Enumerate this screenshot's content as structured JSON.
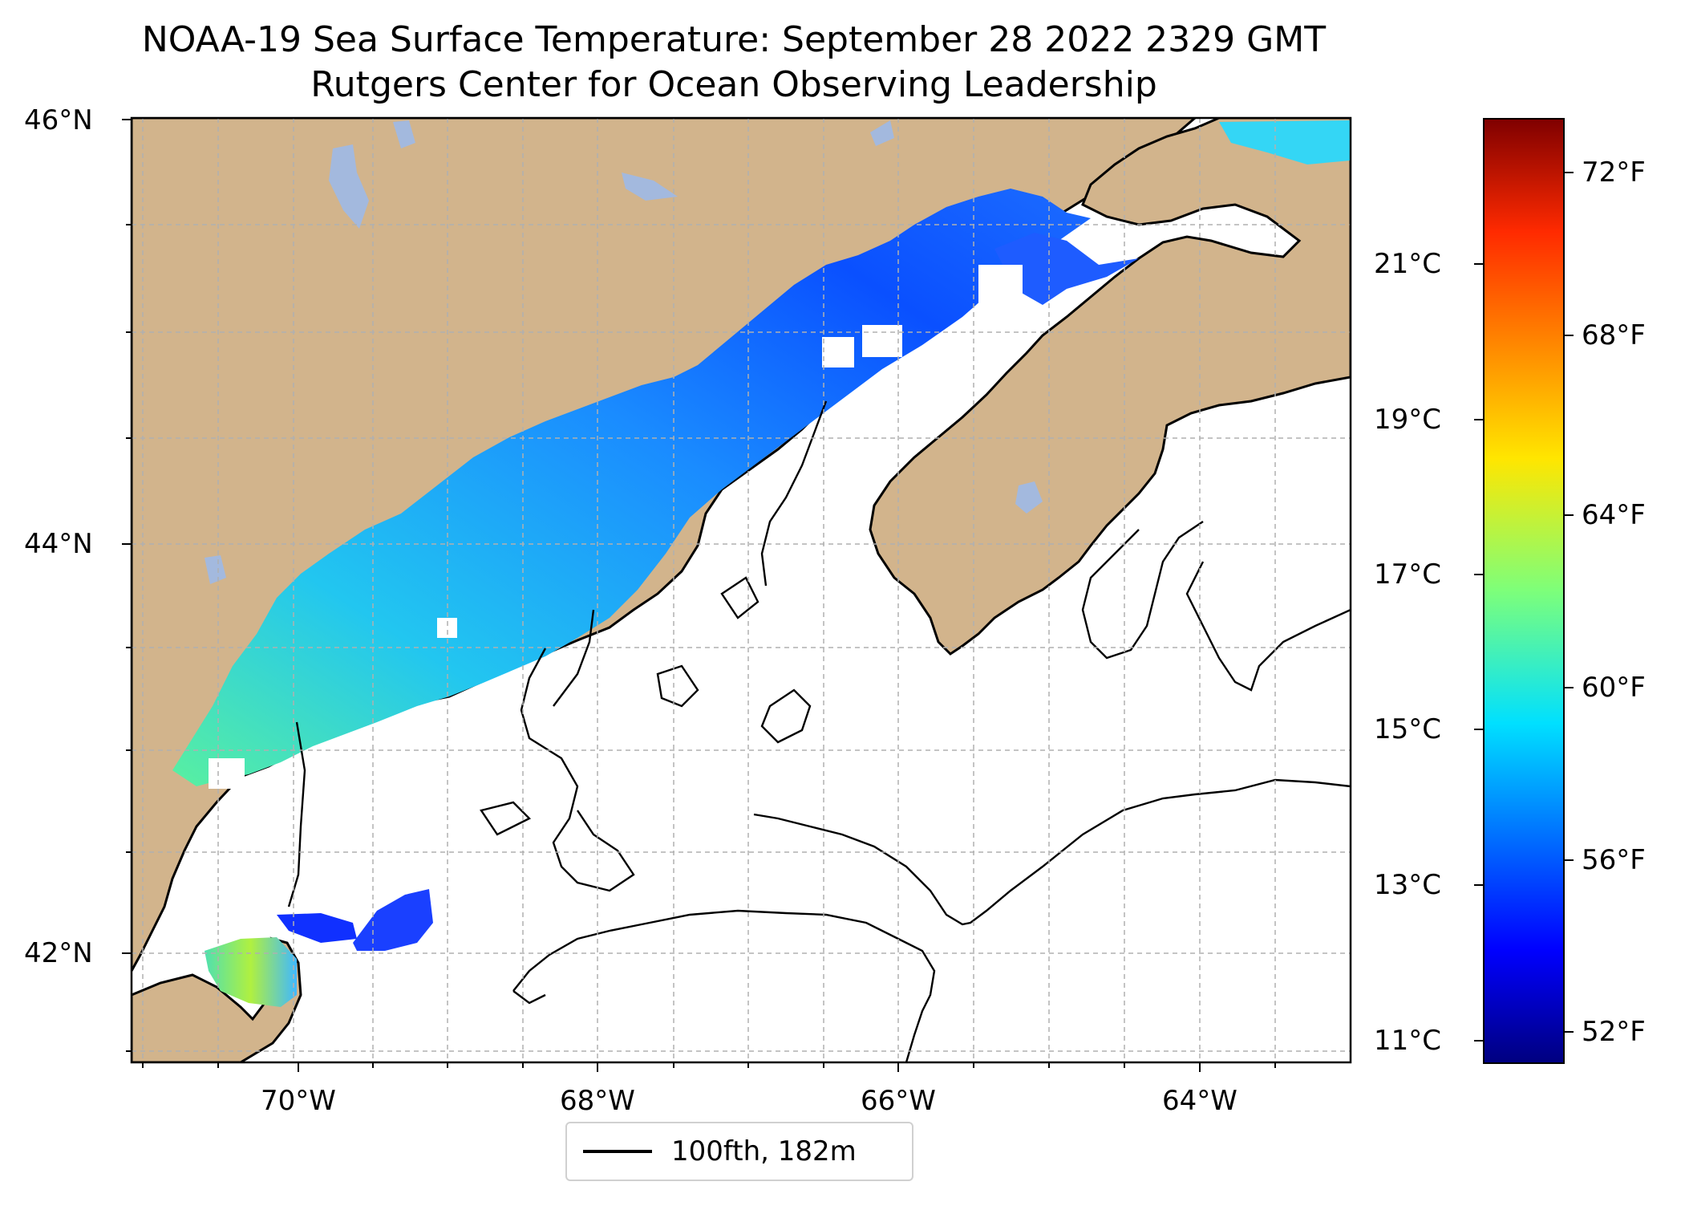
{
  "title": {
    "line1": "NOAA-19 Sea Surface Temperature: September 28 2022 2329 GMT",
    "line2": "Rutgers Center for Ocean Observing Leadership"
  },
  "axes": {
    "lat_labels": [
      "46°N",
      "44°N",
      "42°N"
    ],
    "lon_labels": [
      "70°W",
      "68°W",
      "66°W",
      "64°W"
    ]
  },
  "colorbar": {
    "celsius_labels": [
      "21°C",
      "19°C",
      "17°C",
      "15°C",
      "13°C",
      "11°C"
    ],
    "fahrenheit_labels": [
      "72°F",
      "68°F",
      "64°F",
      "60°F",
      "56°F",
      "52°F"
    ]
  },
  "legend": {
    "label": "100fth, 182m"
  },
  "colors": {
    "land": "#d2b48c",
    "lake": "#a3b9de",
    "water_bg": "#ffffff",
    "gridline": "#b0b0b0"
  }
}
